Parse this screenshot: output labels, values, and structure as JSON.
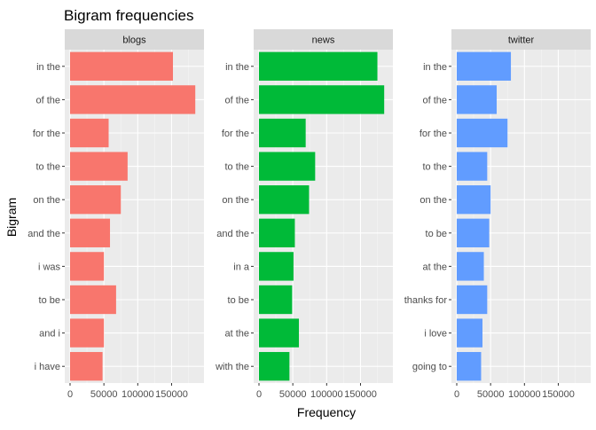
{
  "chart_data": {
    "type": "bar",
    "orientation": "horizontal",
    "title": "Bigram frequencies",
    "xlabel": "Frequency",
    "ylabel": "Bigram",
    "xlim": [
      0,
      190000
    ],
    "x_ticks": [
      0,
      50000,
      100000,
      150000
    ],
    "x_tick_labels": [
      "0",
      "50000",
      "100000",
      "150000"
    ],
    "grid": true,
    "legend": "none",
    "panels": [
      {
        "name": "blogs",
        "color": "#F8766D",
        "categories": [
          "in the",
          "of the",
          "for the",
          "to the",
          "on the",
          "and the",
          "i was",
          "to be",
          "and i",
          "i have"
        ],
        "values": [
          152000,
          185000,
          57000,
          85000,
          75000,
          59000,
          50000,
          68000,
          50000,
          48000
        ]
      },
      {
        "name": "news",
        "color": "#00BA38",
        "categories": [
          "in the",
          "of the",
          "for the",
          "to the",
          "on the",
          "and the",
          "in a",
          "to be",
          "at the",
          "with the"
        ],
        "values": [
          175000,
          185000,
          69000,
          83000,
          74000,
          53000,
          51000,
          49000,
          59000,
          45000
        ]
      },
      {
        "name": "twitter",
        "color": "#619CFF",
        "categories": [
          "in the",
          "of the",
          "for the",
          "to the",
          "on the",
          "to be",
          "at the",
          "thanks for",
          "i love",
          "going to"
        ],
        "values": [
          80000,
          59000,
          75000,
          45000,
          50000,
          48000,
          40000,
          45000,
          38000,
          36000
        ]
      }
    ]
  }
}
